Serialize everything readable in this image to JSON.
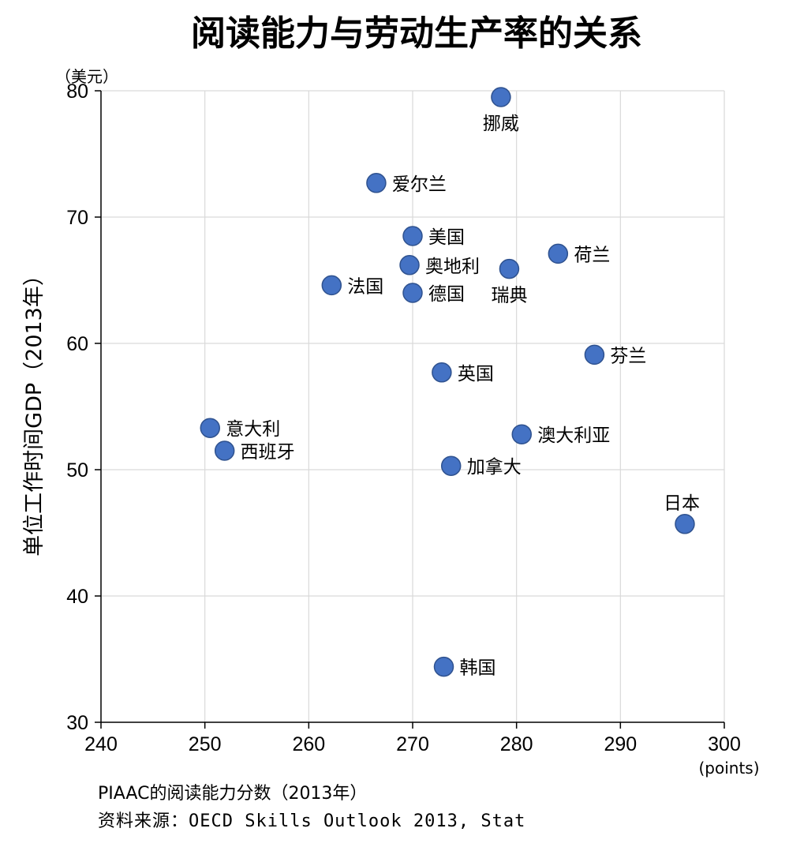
{
  "chart_data": {
    "type": "scatter",
    "title": "阅读能力与劳动生产率的关系",
    "ylabel": "单位工作时间GDP（2013年）",
    "y_unit": "（美元）",
    "x_unit": "(points)",
    "xlabel": "PIAAC的阅读能力分数（2013年）",
    "source": "资料来源：OECD Skills Outlook 2013, Stat",
    "xlim": [
      240,
      300
    ],
    "ylim": [
      30,
      80
    ],
    "x_ticks": [
      "240",
      "250",
      "260",
      "270",
      "280",
      "290",
      "300"
    ],
    "y_ticks": [
      "30",
      "40",
      "50",
      "60",
      "70",
      "80"
    ],
    "grid": true,
    "marker_color": "#4472c4",
    "points": [
      {
        "label": "挪威",
        "x": 278.5,
        "y": 79.5,
        "pos": "below"
      },
      {
        "label": "爱尔兰",
        "x": 266.5,
        "y": 72.7,
        "pos": "right"
      },
      {
        "label": "美国",
        "x": 270.0,
        "y": 68.5,
        "pos": "right"
      },
      {
        "label": "奥地利",
        "x": 269.7,
        "y": 66.2,
        "pos": "right"
      },
      {
        "label": "荷兰",
        "x": 284.0,
        "y": 67.1,
        "pos": "right"
      },
      {
        "label": "瑞典",
        "x": 279.3,
        "y": 65.9,
        "pos": "below"
      },
      {
        "label": "法国",
        "x": 262.2,
        "y": 64.6,
        "pos": "right"
      },
      {
        "label": "德国",
        "x": 270.0,
        "y": 64.0,
        "pos": "right"
      },
      {
        "label": "芬兰",
        "x": 287.5,
        "y": 59.1,
        "pos": "right"
      },
      {
        "label": "英国",
        "x": 272.8,
        "y": 57.7,
        "pos": "right"
      },
      {
        "label": "意大利",
        "x": 250.5,
        "y": 53.3,
        "pos": "right"
      },
      {
        "label": "澳大利亚",
        "x": 280.5,
        "y": 52.8,
        "pos": "right"
      },
      {
        "label": "西班牙",
        "x": 251.9,
        "y": 51.5,
        "pos": "right"
      },
      {
        "label": "加拿大",
        "x": 273.7,
        "y": 50.3,
        "pos": "right"
      },
      {
        "label": "日本",
        "x": 296.2,
        "y": 45.7,
        "pos": "above"
      },
      {
        "label": "韩国",
        "x": 273.0,
        "y": 34.4,
        "pos": "right"
      }
    ]
  }
}
